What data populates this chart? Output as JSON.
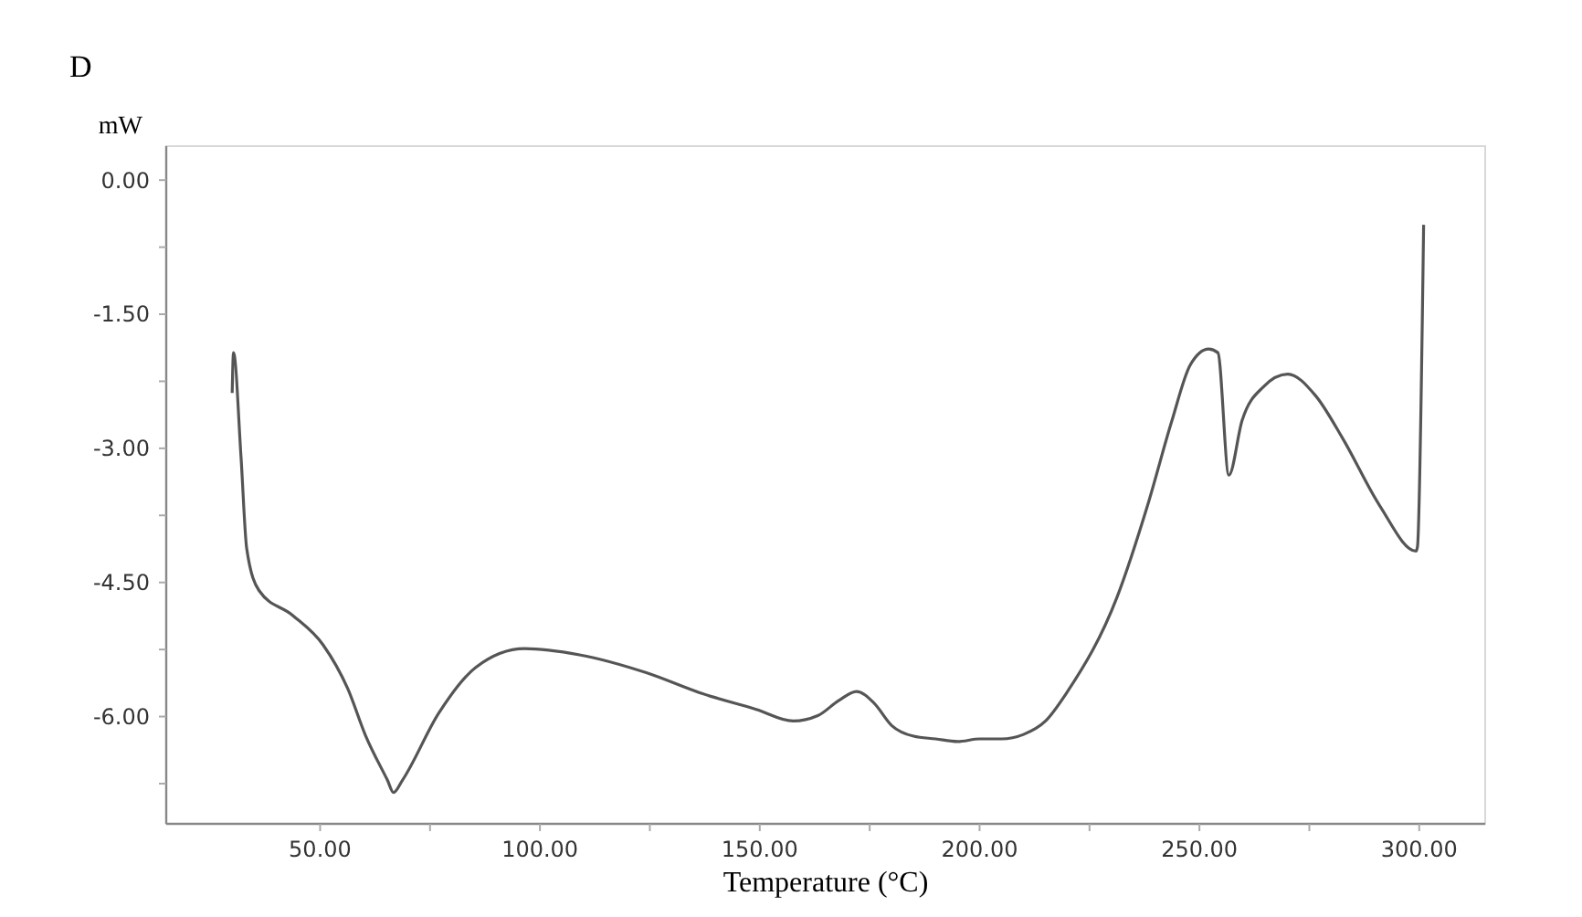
{
  "chart_data": {
    "type": "line",
    "title": "D",
    "ylabel": "mW",
    "xlabel": "Temperature (°C)",
    "xlim": [
      15,
      315
    ],
    "ylim": [
      -7.2,
      0.38
    ],
    "xticks": [
      {
        "value": 50,
        "label": "50.00"
      },
      {
        "value": 75,
        "label": null
      },
      {
        "value": 100,
        "label": "100.00"
      },
      {
        "value": 125,
        "label": null
      },
      {
        "value": 150,
        "label": "150.00"
      },
      {
        "value": 175,
        "label": null
      },
      {
        "value": 200,
        "label": "200.00"
      },
      {
        "value": 225,
        "label": null
      },
      {
        "value": 250,
        "label": "250.00"
      },
      {
        "value": 275,
        "label": null
      },
      {
        "value": 300,
        "label": "300.00"
      }
    ],
    "yticks": [
      {
        "value": 0,
        "label": "0.00"
      },
      {
        "value": -0.75,
        "label": null
      },
      {
        "value": -1.5,
        "label": "-1.50"
      },
      {
        "value": -2.25,
        "label": null
      },
      {
        "value": -3,
        "label": "-3.00"
      },
      {
        "value": -3.75,
        "label": null
      },
      {
        "value": -4.5,
        "label": "-4.50"
      },
      {
        "value": -5.25,
        "label": null
      },
      {
        "value": -6,
        "label": "-6.00"
      },
      {
        "value": -6.75,
        "label": null
      }
    ],
    "grid": false,
    "marker": "none",
    "line_style": "solid",
    "series": [
      {
        "color": "#555555",
        "x": [
          30.0,
          30.3,
          32,
          33.3,
          36.1,
          43.8,
          50.7,
          56.3,
          60.4,
          65.3,
          66.7,
          68.75,
          77,
          85.4,
          96.5,
          109,
          124.2,
          136.7,
          149.2,
          157.6,
          163.2,
          168,
          172,
          176,
          180,
          185,
          190,
          195,
          200,
          205,
          210,
          215,
          220,
          231.3,
          238.2,
          243.75,
          247.9,
          252.1,
          254.2,
          256.7,
          259.7,
          264.6,
          270.1,
          276.4,
          282.6,
          291,
          299.3,
          299.6,
          301
        ],
        "values": [
          -2.38,
          -1.93,
          -3.09,
          -4.12,
          -4.59,
          -4.87,
          -5.2,
          -5.69,
          -6.22,
          -6.71,
          -6.85,
          -6.71,
          -5.96,
          -5.45,
          -5.24,
          -5.31,
          -5.51,
          -5.74,
          -5.92,
          -6.05,
          -5.99,
          -5.82,
          -5.72,
          -5.85,
          -6.1,
          -6.22,
          -6.25,
          -6.28,
          -6.25,
          -6.25,
          -6.2,
          -6.05,
          -5.72,
          -4.66,
          -3.64,
          -2.69,
          -2.07,
          -1.89,
          -1.93,
          -3.3,
          -2.69,
          -2.31,
          -2.17,
          -2.41,
          -2.89,
          -3.64,
          -4.15,
          -4.1,
          -0.5
        ]
      }
    ]
  }
}
